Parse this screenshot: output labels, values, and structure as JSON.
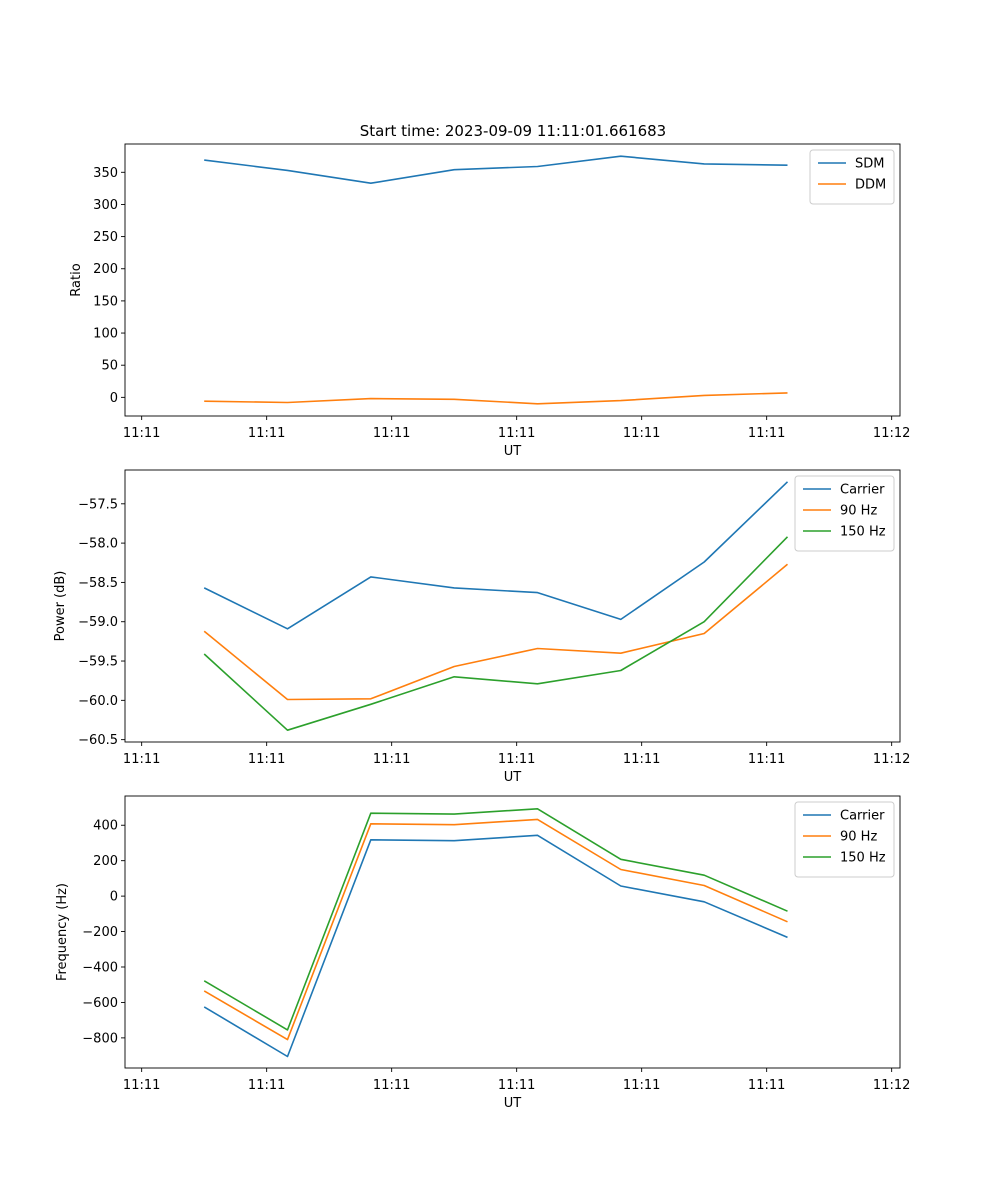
{
  "figure_title": "Start time: 2023-09-09 11:11:01.661683",
  "chart_data": [
    {
      "type": "line",
      "title": "Start time: 2023-09-09 11:11:01.661683",
      "xlabel": "UT",
      "ylabel": "Ratio",
      "x": [
        0.75,
        1.75,
        2.75,
        3.75,
        4.75,
        5.75,
        6.75,
        7.75
      ],
      "xlim": [
        -0.2,
        9.1
      ],
      "ylim": [
        -29,
        394
      ],
      "xticks": [
        0,
        1.5,
        3,
        4.5,
        6,
        7.5,
        9
      ],
      "xtick_labels": [
        "11:11",
        "11:11",
        "11:11",
        "11:11",
        "11:11",
        "11:11",
        "11:12"
      ],
      "yticks": [
        0,
        50,
        100,
        150,
        200,
        250,
        300,
        350
      ],
      "ytick_labels": [
        "0",
        "50",
        "100",
        "150",
        "200",
        "250",
        "300",
        "350"
      ],
      "legend": "top-right",
      "series": [
        {
          "name": "SDM",
          "color": "#1f77b4",
          "values": [
            369,
            353,
            333,
            354,
            359,
            375,
            363,
            361
          ]
        },
        {
          "name": "DDM",
          "color": "#ff7f0e",
          "values": [
            -6,
            -8,
            -2,
            -3,
            -10,
            -5,
            3,
            7
          ]
        }
      ]
    },
    {
      "type": "line",
      "xlabel": "UT",
      "ylabel": "Power (dB)",
      "x": [
        0.75,
        1.75,
        2.75,
        3.75,
        4.75,
        5.75,
        6.75,
        7.75
      ],
      "xlim": [
        -0.2,
        9.1
      ],
      "ylim": [
        -60.53,
        -57.07
      ],
      "xticks": [
        0,
        1.5,
        3,
        4.5,
        6,
        7.5,
        9
      ],
      "xtick_labels": [
        "11:11",
        "11:11",
        "11:11",
        "11:11",
        "11:11",
        "11:11",
        "11:12"
      ],
      "yticks": [
        -60.5,
        -60.0,
        -59.5,
        -59.0,
        -58.5,
        -58.0,
        -57.5
      ],
      "ytick_labels": [
        "−60.5",
        "−60.0",
        "−59.5",
        "−59.0",
        "−58.5",
        "−58.0",
        "−57.5"
      ],
      "legend": "top-right",
      "series": [
        {
          "name": "Carrier",
          "color": "#1f77b4",
          "values": [
            -58.57,
            -59.09,
            -58.43,
            -58.57,
            -58.63,
            -58.97,
            -58.24,
            -57.22
          ]
        },
        {
          "name": "90 Hz",
          "color": "#ff7f0e",
          "values": [
            -59.12,
            -59.99,
            -59.98,
            -59.57,
            -59.34,
            -59.4,
            -59.15,
            -58.27
          ]
        },
        {
          "name": "150 Hz",
          "color": "#2ca02c",
          "values": [
            -59.41,
            -60.38,
            -60.05,
            -59.7,
            -59.79,
            -59.62,
            -59.0,
            -57.92
          ]
        }
      ]
    },
    {
      "type": "line",
      "xlabel": "UT",
      "ylabel": "Frequency (Hz)",
      "x": [
        0.75,
        1.75,
        2.75,
        3.75,
        4.75,
        5.75,
        6.75,
        7.75
      ],
      "xlim": [
        -0.2,
        9.1
      ],
      "ylim": [
        -970,
        565
      ],
      "xticks": [
        0,
        1.5,
        3,
        4.5,
        6,
        7.5,
        9
      ],
      "xtick_labels": [
        "11:11",
        "11:11",
        "11:11",
        "11:11",
        "11:11",
        "11:11",
        "11:12"
      ],
      "yticks": [
        -800,
        -600,
        -400,
        -200,
        0,
        200,
        400
      ],
      "ytick_labels": [
        "−800",
        "−600",
        "−400",
        "−200",
        "0",
        "200",
        "400"
      ],
      "legend": "top-right",
      "series": [
        {
          "name": "Carrier",
          "color": "#1f77b4",
          "values": [
            -625,
            -905,
            318,
            313,
            343,
            57,
            -32,
            -233
          ]
        },
        {
          "name": "90 Hz",
          "color": "#ff7f0e",
          "values": [
            -535,
            -810,
            408,
            403,
            433,
            150,
            60,
            -145
          ]
        },
        {
          "name": "150 Hz",
          "color": "#2ca02c",
          "values": [
            -478,
            -755,
            468,
            463,
            493,
            208,
            118,
            -85
          ]
        }
      ]
    }
  ]
}
